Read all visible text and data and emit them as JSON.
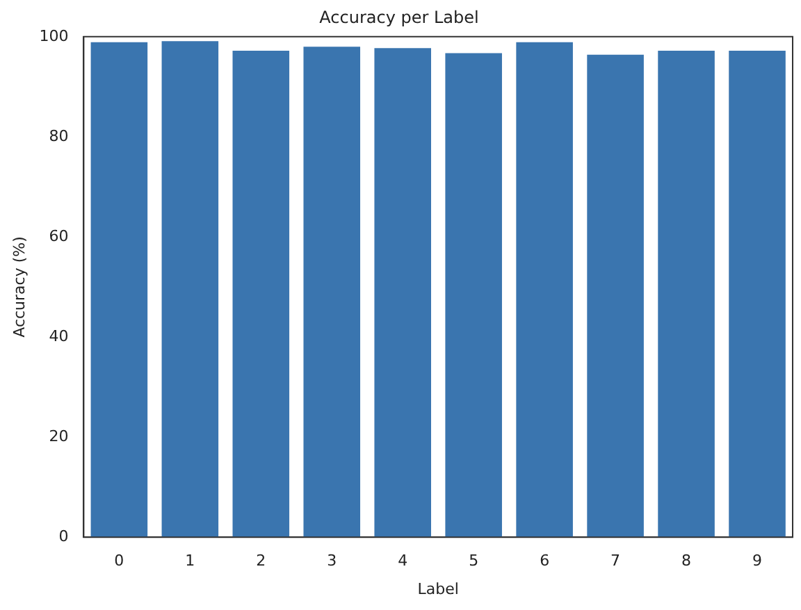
{
  "chart_data": {
    "type": "bar",
    "title": "Accuracy per Label",
    "xlabel": "Label",
    "ylabel": "Accuracy (%)",
    "categories": [
      "0",
      "1",
      "2",
      "3",
      "4",
      "5",
      "6",
      "7",
      "8",
      "9"
    ],
    "values": [
      98.9,
      99.1,
      97.2,
      98.0,
      97.7,
      96.7,
      98.9,
      96.4,
      97.2,
      97.2
    ],
    "color": "#3a75af",
    "ylim": [
      0,
      100
    ],
    "yticks": [
      0,
      20,
      40,
      60,
      80,
      100
    ]
  }
}
